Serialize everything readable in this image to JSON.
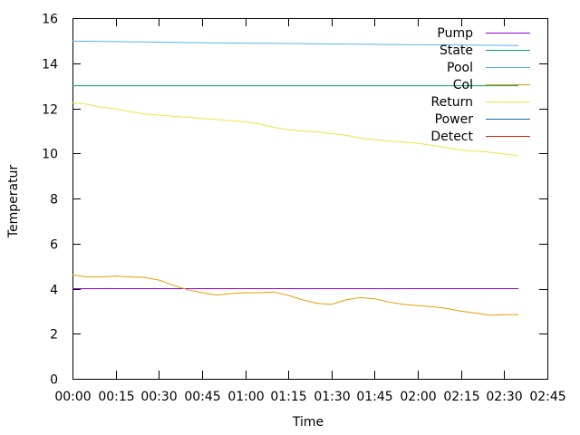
{
  "chart_data": {
    "type": "line",
    "title": "",
    "xlabel": "Time",
    "ylabel": "Temperatur",
    "xlim": [
      0,
      165
    ],
    "ylim": [
      0,
      16
    ],
    "grid": false,
    "legend_position": "top-right",
    "x_ticks": [
      {
        "value": 0,
        "label": "00:00"
      },
      {
        "value": 15,
        "label": "00:15"
      },
      {
        "value": 30,
        "label": "00:30"
      },
      {
        "value": 45,
        "label": "00:45"
      },
      {
        "value": 60,
        "label": "01:00"
      },
      {
        "value": 75,
        "label": "01:15"
      },
      {
        "value": 90,
        "label": "01:30"
      },
      {
        "value": 105,
        "label": "01:45"
      },
      {
        "value": 120,
        "label": "02:00"
      },
      {
        "value": 135,
        "label": "02:15"
      },
      {
        "value": 150,
        "label": "02:30"
      },
      {
        "value": 165,
        "label": "02:45"
      }
    ],
    "y_ticks": [
      {
        "value": 0,
        "label": "0"
      },
      {
        "value": 2,
        "label": "2"
      },
      {
        "value": 4,
        "label": "4"
      },
      {
        "value": 6,
        "label": "6"
      },
      {
        "value": 8,
        "label": "8"
      },
      {
        "value": 10,
        "label": "10"
      },
      {
        "value": 12,
        "label": "12"
      },
      {
        "value": 14,
        "label": "14"
      },
      {
        "value": 16,
        "label": "16"
      }
    ],
    "series": [
      {
        "name": "Pump",
        "color": "#9400d3",
        "x": [
          0,
          155
        ],
        "y": [
          4.0,
          4.0
        ]
      },
      {
        "name": "State",
        "color": "#009e73",
        "x": [
          0,
          155
        ],
        "y": [
          13.0,
          13.0
        ]
      },
      {
        "name": "Pool",
        "color": "#56b4e9",
        "x": [
          0,
          20,
          50,
          80,
          110,
          140,
          155
        ],
        "y": [
          14.98,
          14.95,
          14.9,
          14.87,
          14.83,
          14.8,
          14.78
        ]
      },
      {
        "name": "Col",
        "color": "#e69f00",
        "x": [
          0,
          5,
          10,
          15,
          20,
          25,
          30,
          35,
          40,
          45,
          50,
          55,
          60,
          65,
          70,
          75,
          80,
          85,
          90,
          95,
          100,
          105,
          110,
          115,
          120,
          125,
          130,
          135,
          140,
          145,
          150,
          155
        ],
        "y": [
          4.62,
          4.52,
          4.52,
          4.55,
          4.52,
          4.5,
          4.38,
          4.15,
          3.95,
          3.82,
          3.72,
          3.78,
          3.82,
          3.82,
          3.85,
          3.7,
          3.5,
          3.35,
          3.3,
          3.5,
          3.6,
          3.55,
          3.4,
          3.3,
          3.25,
          3.2,
          3.12,
          3.0,
          2.92,
          2.82,
          2.85,
          2.85
        ]
      },
      {
        "name": "Return",
        "color": "#f0e442",
        "x": [
          0,
          5,
          10,
          15,
          20,
          25,
          30,
          35,
          40,
          45,
          50,
          55,
          60,
          65,
          70,
          75,
          80,
          85,
          90,
          95,
          100,
          105,
          110,
          115,
          120,
          125,
          130,
          135,
          140,
          145,
          150,
          155
        ],
        "y": [
          12.25,
          12.18,
          12.05,
          11.98,
          11.85,
          11.75,
          11.7,
          11.65,
          11.6,
          11.55,
          11.5,
          11.45,
          11.4,
          11.3,
          11.15,
          11.05,
          11.0,
          10.95,
          10.88,
          10.8,
          10.68,
          10.6,
          10.55,
          10.5,
          10.45,
          10.35,
          10.25,
          10.15,
          10.1,
          10.05,
          9.98,
          9.88
        ]
      },
      {
        "name": "Power",
        "color": "#0072b2",
        "x": [],
        "y": []
      },
      {
        "name": "Detect",
        "color": "#e51e10",
        "x": [],
        "y": []
      }
    ]
  }
}
